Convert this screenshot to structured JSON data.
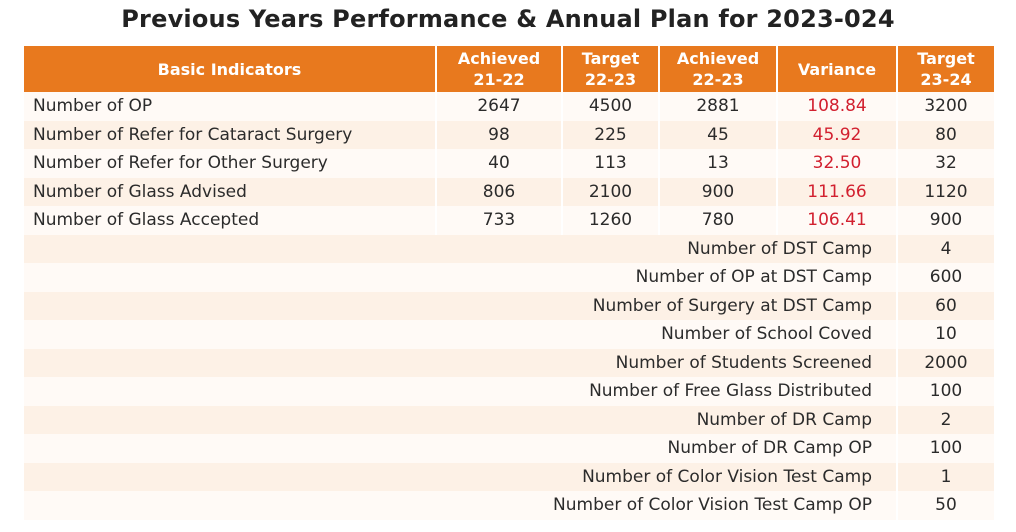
{
  "title": "Previous Years Performance & Annual Plan for 2023-024",
  "headers": {
    "basic": "Basic Indicators",
    "achieved_2122": [
      "Achieved",
      "21-22"
    ],
    "target_2223": [
      "Target",
      "22-23"
    ],
    "achieved_2223": [
      "Achieved",
      "22-23"
    ],
    "variance": "Variance",
    "target_2324": [
      "Target",
      "23-24"
    ]
  },
  "rows": [
    {
      "label": "Number of OP",
      "achieved_2122": "2647",
      "target_2223": "4500",
      "achieved_2223": "2881",
      "variance": "108.84",
      "target_2324": "3200"
    },
    {
      "label": "Number of Refer for Cataract Surgery",
      "achieved_2122": "98",
      "target_2223": "225",
      "achieved_2223": "45",
      "variance": "45.92",
      "target_2324": "80"
    },
    {
      "label": "Number of Refer for  Other Surgery",
      "achieved_2122": "40",
      "target_2223": "113",
      "achieved_2223": "13",
      "variance": "32.50",
      "target_2324": "32"
    },
    {
      "label": "Number of Glass Advised",
      "achieved_2122": "806",
      "target_2223": "2100",
      "achieved_2223": "900",
      "variance": "111.66",
      "target_2324": "1120"
    },
    {
      "label": "Number of Glass Accepted",
      "achieved_2122": "733",
      "target_2223": "1260",
      "achieved_2223": "780",
      "variance": "106.41",
      "target_2324": "900"
    }
  ],
  "plan_rows": [
    {
      "label": "Number of DST Camp",
      "target_2324": "4"
    },
    {
      "label": "Number of OP at DST Camp",
      "target_2324": "600"
    },
    {
      "label": "Number of Surgery at DST Camp",
      "target_2324": "60"
    },
    {
      "label": "Number of School Coved",
      "target_2324": "10"
    },
    {
      "label": "Number of Students Screened",
      "target_2324": "2000"
    },
    {
      "label": "Number of Free Glass Distributed",
      "target_2324": "100"
    },
    {
      "label": "Number of DR Camp",
      "target_2324": "2"
    },
    {
      "label": "Number of DR Camp OP",
      "target_2324": "100"
    },
    {
      "label": "Number of Color Vision Test Camp",
      "target_2324": "1"
    },
    {
      "label": "Number of Color Vision Test Camp OP",
      "target_2324": "50"
    }
  ]
}
